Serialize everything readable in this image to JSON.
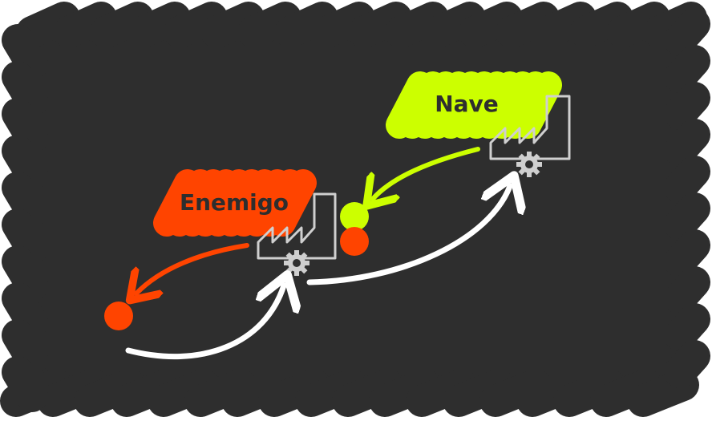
{
  "colors": {
    "background": "#ffffff",
    "blob": "#2e2e2e",
    "ship": "#ccff00",
    "enemy": "#ff4400",
    "arrow_white": "#ffffff",
    "factory_stroke": "#cfcfcf"
  },
  "labels": {
    "ship": "Nave",
    "enemy": "Enemigo"
  },
  "icons": {
    "factory": "factory-icon",
    "gear": "gear-icon"
  }
}
